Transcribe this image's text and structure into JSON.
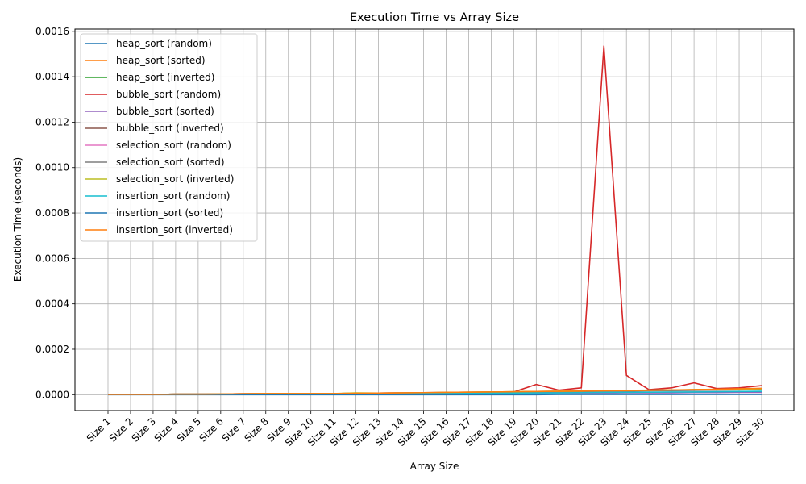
{
  "chart_data": {
    "type": "line",
    "title": "Execution Time vs Array Size",
    "xlabel": "Array Size",
    "ylabel": "Execution Time (seconds)",
    "ylim": [
      -7e-05,
      0.00161
    ],
    "yticks": [
      0,
      0.0002,
      0.0004,
      0.0006,
      0.0008,
      0.001,
      0.0012,
      0.0014,
      0.0016
    ],
    "ytick_labels": [
      "0.0000",
      "0.0002",
      "0.0004",
      "0.0006",
      "0.0008",
      "0.0010",
      "0.0012",
      "0.0014",
      "0.0016"
    ],
    "grid": true,
    "legend_position": "top-left",
    "categories": [
      "Size 1",
      "Size 2",
      "Size 3",
      "Size 4",
      "Size 5",
      "Size 6",
      "Size 7",
      "Size 8",
      "Size 9",
      "Size 10",
      "Size 11",
      "Size 12",
      "Size 13",
      "Size 14",
      "Size 15",
      "Size 16",
      "Size 17",
      "Size 18",
      "Size 19",
      "Size 20",
      "Size 21",
      "Size 22",
      "Size 23",
      "Size 24",
      "Size 25",
      "Size 26",
      "Size 27",
      "Size 28",
      "Size 29",
      "Size 30"
    ],
    "series": [
      {
        "name": "heap_sort (random)",
        "color": "#1f77b4",
        "values": [
          1e-06,
          1e-06,
          1e-06,
          2e-06,
          2e-06,
          2e-06,
          3e-06,
          3e-06,
          3e-06,
          3e-06,
          3e-06,
          4e-06,
          4e-06,
          5e-06,
          5e-06,
          6e-06,
          6e-06,
          6e-06,
          7e-06,
          7e-06,
          8e-06,
          8e-06,
          9e-06,
          9e-06,
          1e-05,
          1e-05,
          1.1e-05,
          1.1e-05,
          1.2e-05,
          1.2e-05
        ]
      },
      {
        "name": "heap_sort (sorted)",
        "color": "#ff7f0e",
        "values": [
          1e-06,
          1e-06,
          1e-06,
          2e-06,
          2e-06,
          2e-06,
          3e-06,
          3e-06,
          3e-06,
          3e-06,
          4e-06,
          4e-06,
          5e-06,
          5e-06,
          5e-06,
          6e-06,
          6e-06,
          7e-06,
          7e-06,
          8e-06,
          8e-06,
          9e-06,
          9e-06,
          1e-05,
          1e-05,
          1.1e-05,
          1.1e-05,
          1.2e-05,
          1.2e-05,
          1.3e-05
        ]
      },
      {
        "name": "heap_sort (inverted)",
        "color": "#2ca02c",
        "values": [
          1e-06,
          1e-06,
          1e-06,
          2e-06,
          2e-06,
          2e-06,
          3e-06,
          3e-06,
          3e-06,
          3e-06,
          3e-06,
          4e-06,
          4e-06,
          5e-06,
          5e-06,
          5e-06,
          6e-06,
          6e-06,
          7e-06,
          7e-06,
          8e-06,
          8e-06,
          9e-06,
          9e-06,
          1e-05,
          1e-05,
          1.1e-05,
          1.1e-05,
          1.1e-05,
          1.2e-05
        ]
      },
      {
        "name": "bubble_sort (random)",
        "color": "#d62728",
        "values": [
          1e-06,
          1e-06,
          1e-06,
          2e-06,
          2e-06,
          3e-06,
          4e-06,
          5e-06,
          5e-06,
          5e-06,
          5e-06,
          6e-06,
          7e-06,
          8e-06,
          8e-06,
          9e-06,
          1e-05,
          1.1e-05,
          1.2e-05,
          4.5e-05,
          2e-05,
          3e-05,
          0.001535,
          8.5e-05,
          2.2e-05,
          3e-05,
          5.2e-05,
          2.7e-05,
          3e-05,
          4e-05
        ]
      },
      {
        "name": "bubble_sort (sorted)",
        "color": "#9467bd",
        "values": [
          1e-06,
          1e-06,
          1e-06,
          1e-06,
          1e-06,
          2e-06,
          2e-06,
          2e-06,
          3e-06,
          3e-06,
          3e-06,
          3e-06,
          4e-06,
          4e-06,
          4e-06,
          5e-06,
          5e-06,
          5e-06,
          6e-06,
          6e-06,
          7e-06,
          7e-06,
          7e-06,
          8e-06,
          8e-06,
          8e-06,
          9e-06,
          9e-06,
          1e-05,
          1e-05
        ]
      },
      {
        "name": "bubble_sort (inverted)",
        "color": "#8c564b",
        "values": [
          1e-06,
          1e-06,
          1e-06,
          2e-06,
          2e-06,
          3e-06,
          4e-06,
          5e-06,
          5e-06,
          5e-06,
          5e-06,
          6e-06,
          7e-06,
          8e-06,
          9e-06,
          1e-05,
          1.1e-05,
          1.2e-05,
          1.3e-05,
          1.4e-05,
          1.5e-05,
          1.6e-05,
          1.7e-05,
          1.8e-05,
          1.9e-05,
          2e-05,
          2.2e-05,
          2.3e-05,
          2.5e-05,
          2.7e-05
        ]
      },
      {
        "name": "selection_sort (random)",
        "color": "#e377c2",
        "values": [
          1e-06,
          1e-06,
          1e-06,
          2e-06,
          2e-06,
          3e-06,
          4e-06,
          5e-06,
          5e-06,
          5e-06,
          5e-06,
          6e-06,
          7e-06,
          8e-06,
          8e-06,
          9e-06,
          1e-05,
          1.1e-05,
          1.2e-05,
          1.3e-05,
          1.4e-05,
          1.5e-05,
          1.6e-05,
          1.7e-05,
          1.8e-05,
          1.9e-05,
          2e-05,
          2.2e-05,
          2.3e-05,
          2.5e-05
        ]
      },
      {
        "name": "selection_sort (sorted)",
        "color": "#7f7f7f",
        "values": [
          1e-06,
          1e-06,
          1e-06,
          2e-06,
          2e-06,
          3e-06,
          4e-06,
          4e-06,
          5e-06,
          5e-06,
          5e-06,
          6e-06,
          7e-06,
          7e-06,
          8e-06,
          9e-06,
          1e-05,
          1.1e-05,
          1.2e-05,
          1.2e-05,
          1.3e-05,
          1.4e-05,
          1.5e-05,
          1.6e-05,
          1.7e-05,
          1.8e-05,
          1.9e-05,
          2e-05,
          2.1e-05,
          2.3e-05
        ]
      },
      {
        "name": "selection_sort (inverted)",
        "color": "#bcbd22",
        "values": [
          1e-06,
          1e-06,
          1e-06,
          2e-06,
          2e-06,
          3e-06,
          4e-06,
          5e-06,
          5e-06,
          5e-06,
          5e-06,
          8e-06,
          7e-06,
          8e-06,
          8e-06,
          1e-05,
          1.1e-05,
          1.2e-05,
          1.3e-05,
          1.4e-05,
          1.5e-05,
          1.6e-05,
          1.8e-05,
          1.9e-05,
          2e-05,
          2.1e-05,
          2.2e-05,
          2.3e-05,
          2.4e-05,
          2.6e-05
        ]
      },
      {
        "name": "insertion_sort (random)",
        "color": "#17becf",
        "values": [
          1e-06,
          1e-06,
          1e-06,
          1e-06,
          1e-06,
          2e-06,
          2e-06,
          2e-06,
          3e-06,
          3e-06,
          3e-06,
          4e-06,
          4e-06,
          5e-06,
          5e-06,
          6e-06,
          6e-06,
          7e-06,
          7e-06,
          8e-06,
          8e-06,
          9e-06,
          1e-05,
          1e-05,
          1.1e-05,
          1.2e-05,
          1.2e-05,
          1.3e-05,
          1.4e-05,
          1.5e-05
        ]
      },
      {
        "name": "insertion_sort (sorted)",
        "color": "#1f77b4",
        "values": [
          0.0,
          0.0,
          0.0,
          0.0,
          0.0,
          0.0,
          0.0,
          0.0,
          0.0,
          0.0,
          0.0,
          0.0,
          0.0,
          0.0,
          0.0,
          0.0,
          0.0,
          0.0,
          0.0,
          0.0,
          1e-06,
          1e-06,
          1e-06,
          1e-06,
          1e-06,
          1e-06,
          1e-06,
          1e-06,
          1e-06,
          1e-06
        ]
      },
      {
        "name": "insertion_sort (inverted)",
        "color": "#ff7f0e",
        "values": [
          1e-06,
          1e-06,
          1e-06,
          2e-06,
          2e-06,
          3e-06,
          4e-06,
          5e-06,
          5e-06,
          5e-06,
          5e-06,
          6e-06,
          7e-06,
          8e-06,
          9e-06,
          1e-05,
          1.1e-05,
          1.2e-05,
          1.3e-05,
          1.4e-05,
          1.5e-05,
          1.6e-05,
          1.7e-05,
          1.8e-05,
          1.9e-05,
          2.1e-05,
          2.2e-05,
          2.4e-05,
          2.6e-05,
          2.8e-05
        ]
      }
    ]
  }
}
